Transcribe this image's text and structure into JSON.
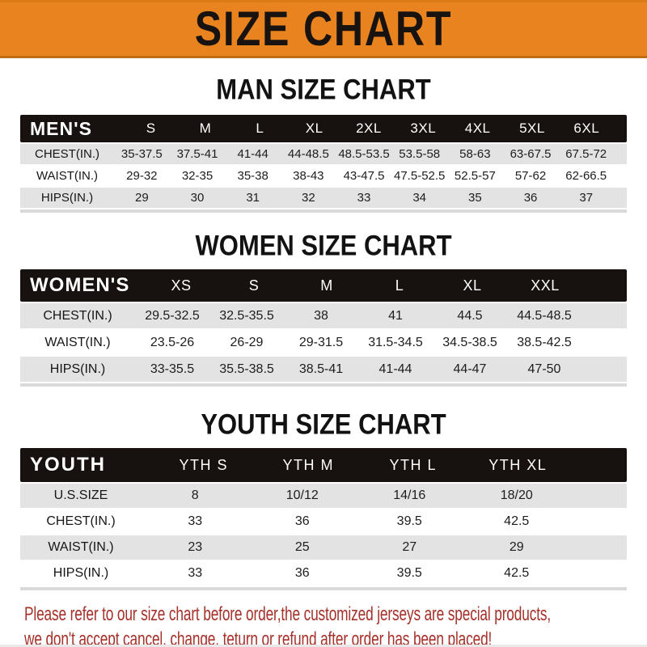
{
  "banner": {
    "title": "SIZE CHART"
  },
  "sections": [
    {
      "heading": "MAN SIZE CHART",
      "header_label": "MEN'S",
      "columns": [
        "S",
        "M",
        "L",
        "XL",
        "2XL",
        "3XL",
        "4XL",
        "5XL",
        "6XL"
      ],
      "rows": [
        {
          "label": "CHEST(IN.)",
          "values": [
            "35-37.5",
            "37.5-41",
            "41-44",
            "44-48.5",
            "48.5-53.5",
            "53.5-58",
            "58-63",
            "63-67.5",
            "67.5-72"
          ]
        },
        {
          "label": "WAIST(IN.)",
          "values": [
            "29-32",
            "32-35",
            "35-38",
            "38-43",
            "43-47.5",
            "47.5-52.5",
            "52.5-57",
            "57-62",
            "62-66.5"
          ]
        },
        {
          "label": "HIPS(IN.)",
          "values": [
            "29",
            "30",
            "31",
            "32",
            "33",
            "34",
            "35",
            "36",
            "37"
          ]
        }
      ]
    },
    {
      "heading": "WOMEN SIZE CHART",
      "header_label": "WOMEN'S",
      "columns": [
        "XS",
        "S",
        "M",
        "L",
        "XL",
        "XXL"
      ],
      "rows": [
        {
          "label": "CHEST(IN.)",
          "values": [
            "29.5-32.5",
            "32.5-35.5",
            "38",
            "41",
            "44.5",
            "44.5-48.5"
          ]
        },
        {
          "label": "WAIST(IN.)",
          "values": [
            "23.5-26",
            "26-29",
            "29-31.5",
            "31.5-34.5",
            "34.5-38.5",
            "38.5-42.5"
          ]
        },
        {
          "label": "HIPS(IN.)",
          "values": [
            "33-35.5",
            "35.5-38.5",
            "38.5-41",
            "41-44",
            "44-47",
            "47-50"
          ]
        }
      ]
    },
    {
      "heading": "YOUTH SIZE CHART",
      "header_label": "YOUTH",
      "columns": [
        "YTH S",
        "YTH M",
        "YTH L",
        "YTH XL"
      ],
      "rows": [
        {
          "label": "U.S.SIZE",
          "values": [
            "8",
            "10/12",
            "14/16",
            "18/20"
          ]
        },
        {
          "label": "CHEST(IN.)",
          "values": [
            "33",
            "36",
            "39.5",
            "42.5"
          ]
        },
        {
          "label": "WAIST(IN.)",
          "values": [
            "23",
            "25",
            "27",
            "29"
          ]
        },
        {
          "label": "HIPS(IN.)",
          "values": [
            "33",
            "36",
            "39.5",
            "42.5"
          ]
        }
      ]
    }
  ],
  "footer": {
    "line1": "Please refer to our size chart before order,the customized jerseys are special products,",
    "line2": "we don't accept cancel, change, teturn or refund after order has been placed!"
  },
  "colors": {
    "banner_orange": "#E8831F",
    "header_bar_black": "#17120F",
    "row_gray": "#E3E3E3",
    "footer_red": "#A5312A"
  }
}
